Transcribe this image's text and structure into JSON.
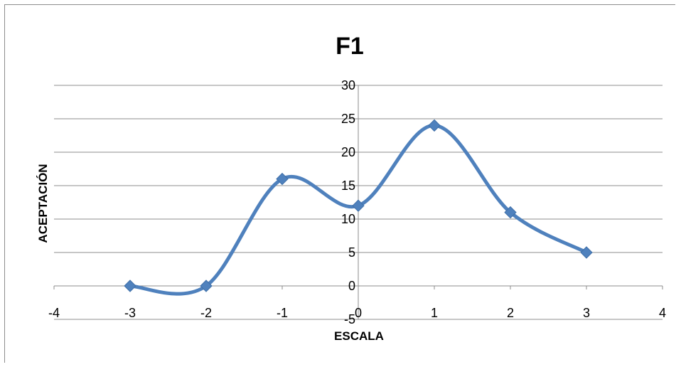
{
  "chart_data": {
    "type": "line",
    "title": "F1",
    "xlabel": "ESCALA",
    "ylabel": "ACEPTACIÓN",
    "x": [
      -3,
      -2,
      -1,
      0,
      1,
      2,
      3
    ],
    "series": [
      {
        "values": [
          0,
          0,
          16,
          12,
          24,
          11,
          5
        ]
      }
    ],
    "xlim": [
      -4,
      4
    ],
    "ylim": [
      -5,
      30
    ],
    "xticks": [
      "-4",
      "-3",
      "-2",
      "-1",
      "0",
      "1",
      "2",
      "3",
      "4"
    ],
    "yticks": [
      "-5",
      "0",
      "5",
      "10",
      "15",
      "20",
      "25",
      "30"
    ],
    "grid": true,
    "smooth": true,
    "marker": "diamond",
    "line_color": "#4F81BD"
  }
}
